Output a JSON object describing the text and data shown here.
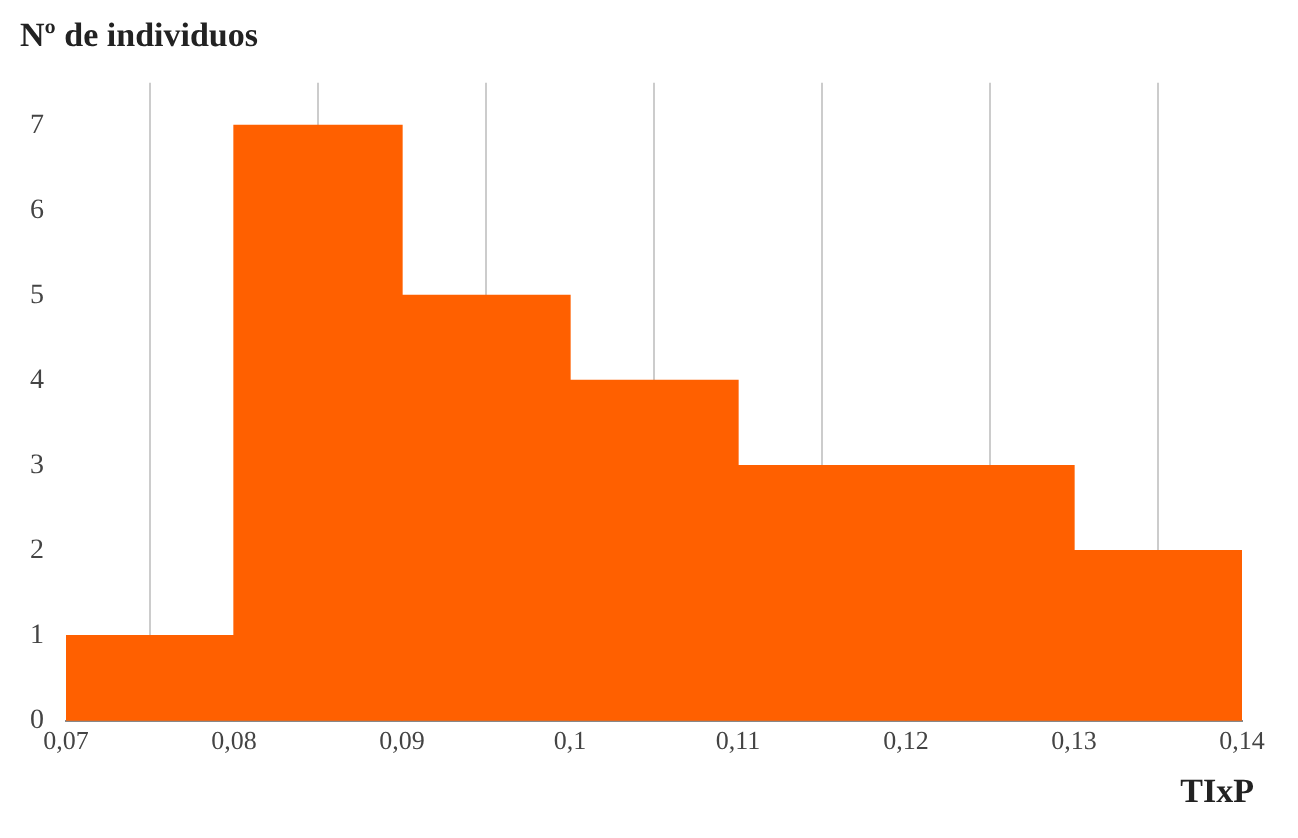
{
  "chart_data": {
    "type": "histogram",
    "xlabel": "TIxP",
    "ylabel": "Nº de individuos",
    "bins": [
      0.07,
      0.08,
      0.09,
      0.1,
      0.11,
      0.12,
      0.13,
      0.14
    ],
    "values": [
      1,
      7,
      5,
      4,
      3,
      3,
      2
    ],
    "color": "#ff6000",
    "xlim": [
      0.07,
      0.14
    ],
    "xticks": [
      {
        "value": 0.07,
        "label": "0,07"
      },
      {
        "value": 0.08,
        "label": "0,08"
      },
      {
        "value": 0.09,
        "label": "0,09"
      },
      {
        "value": 0.1,
        "label": "0,1"
      },
      {
        "value": 0.11,
        "label": "0,11"
      },
      {
        "value": 0.12,
        "label": "0,12"
      },
      {
        "value": 0.13,
        "label": "0,13"
      },
      {
        "value": 0.14,
        "label": "0,14"
      }
    ],
    "ylim": [
      0,
      7.5
    ],
    "yticks": [
      0,
      1,
      2,
      3,
      4,
      5,
      6,
      7
    ],
    "grid": "x"
  }
}
